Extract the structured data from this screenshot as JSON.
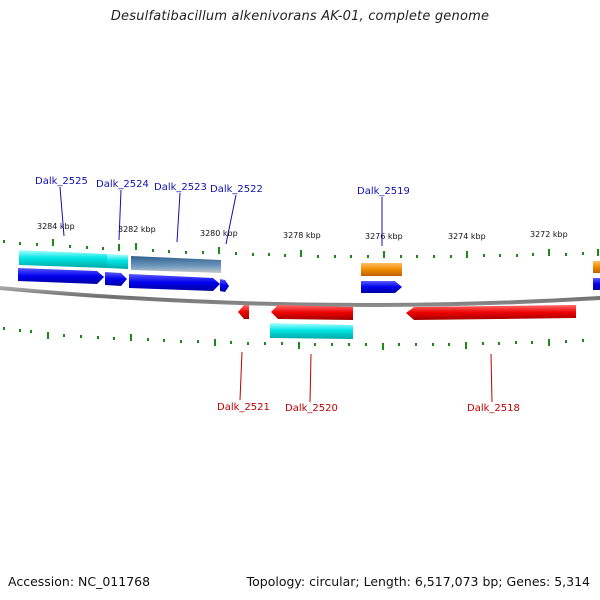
{
  "title": "Desulfatibacillum alkenivorans AK-01, complete genome",
  "footer": {
    "accession": "Accession: NC_011768",
    "summary": "Topology: circular; Length: 6,517,073 bp; Genes: 5,314"
  },
  "kbp_labels": [
    "3284 kbp",
    "3282 kbp",
    "3280 kbp",
    "3278 kbp",
    "3276 kbp",
    "3274 kbp",
    "3272 kbp"
  ],
  "genes_top": [
    {
      "label": "Dalk_2525",
      "strand": "forward"
    },
    {
      "label": "Dalk_2524",
      "strand": "forward"
    },
    {
      "label": "Dalk_2523",
      "strand": "forward"
    },
    {
      "label": "Dalk_2522",
      "strand": "forward"
    },
    {
      "label": "Dalk_2519",
      "strand": "forward"
    }
  ],
  "genes_bottom": [
    {
      "label": "Dalk_2521",
      "strand": "reverse"
    },
    {
      "label": "Dalk_2520",
      "strand": "reverse"
    },
    {
      "label": "Dalk_2518",
      "strand": "reverse"
    }
  ],
  "colors": {
    "forward_gene": "#0000ee",
    "reverse_gene": "#ee0000",
    "cyan_feature": "#00e5e5",
    "steel_feature": "#3f6f9a",
    "orange_feature": "#f08c00",
    "backbone": "#808080",
    "tick": "#1a8a1a",
    "label_forward": "#1010b0",
    "label_reverse": "#c00000"
  }
}
